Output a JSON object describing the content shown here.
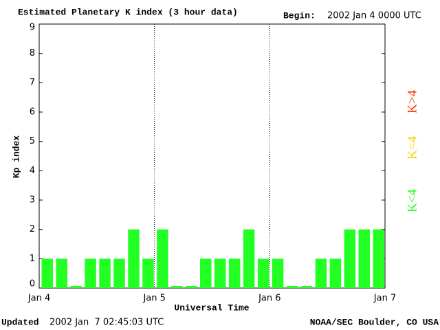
{
  "chart_data": {
    "type": "bar",
    "title": "Estimated Planetary K index (3 hour data)",
    "begin_label": "Begin:",
    "begin_value": "2002 Jan 4 0000 UTC",
    "ylabel": "Kp index",
    "xlabel": "Universal Time",
    "x_tick_labels": [
      "Jan 4",
      "Jan 5",
      "Jan 6",
      "Jan 7"
    ],
    "values": [
      1,
      1,
      0,
      1,
      1,
      1,
      2,
      1,
      2,
      0,
      0,
      1,
      1,
      1,
      2,
      1,
      1,
      0,
      0,
      1,
      1,
      2,
      2,
      2
    ],
    "color": "#22ff22",
    "ylim": [
      0,
      9
    ],
    "yticks": [
      0,
      1,
      2,
      3,
      4,
      5,
      6,
      7,
      8,
      9
    ],
    "legend": [
      {
        "name": "K<4",
        "color": "#22ff22"
      },
      {
        "name": "K=4",
        "color": "#ffcc00"
      },
      {
        "name": "K>4",
        "color": "#ff3300"
      }
    ],
    "updated_label": "Updated",
    "updated_value": "2002 Jan  7 02:45:03 UTC",
    "credit": "NOAA/SEC Boulder, CO USA"
  }
}
